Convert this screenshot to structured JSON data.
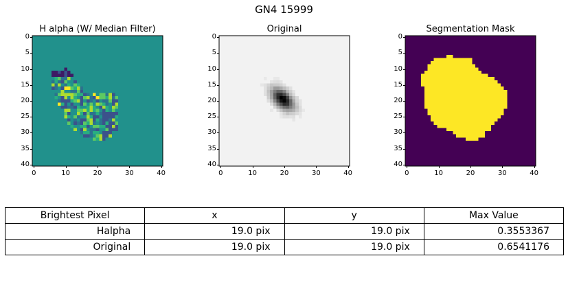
{
  "suptitle": "GN4 15999",
  "chart_data": [
    {
      "type": "heatmap",
      "title": "H alpha (W/ Median Filter)",
      "colormap": "viridis",
      "xlim": [
        0,
        40
      ],
      "ylim": [
        40,
        0
      ],
      "xticks": [
        "0",
        "10",
        "20",
        "30",
        "40"
      ],
      "yticks": [
        "0",
        "5",
        "10",
        "15",
        "20",
        "25",
        "30",
        "35",
        "40"
      ],
      "background_value": 0.0,
      "value_range": [
        -0.25,
        0.36
      ],
      "notes": "Masked emission region with low (purple) pixels at top-left and bright yellow-green pixels; rest constant"
    },
    {
      "type": "heatmap",
      "title": "Original",
      "colormap": "gray_r",
      "xlim": [
        0,
        40
      ],
      "ylim": [
        40,
        0
      ],
      "xticks": [
        "0",
        "10",
        "20",
        "30",
        "40"
      ],
      "yticks": [
        "0",
        "5",
        "10",
        "15",
        "20",
        "25",
        "30",
        "35",
        "40"
      ],
      "peak": [
        19,
        19
      ],
      "peak_value": 0.6541176
    },
    {
      "type": "heatmap",
      "title": "Segmentation Mask",
      "colormap": "viridis",
      "xlim": [
        0,
        40
      ],
      "ylim": [
        40,
        0
      ],
      "xticks": [
        "0",
        "10",
        "20",
        "30",
        "40"
      ],
      "yticks": [
        "0",
        "5",
        "10",
        "15",
        "20",
        "25",
        "30",
        "35",
        "40"
      ],
      "mask_rows": [
        [
          6,
          13,
          14
        ],
        [
          7,
          9,
          20
        ],
        [
          8,
          8,
          20
        ],
        [
          9,
          7,
          21
        ],
        [
          10,
          7,
          22
        ],
        [
          11,
          6,
          23
        ],
        [
          12,
          5,
          25
        ],
        [
          13,
          5,
          27
        ],
        [
          14,
          5,
          28
        ],
        [
          15,
          5,
          29
        ],
        [
          16,
          6,
          30
        ],
        [
          17,
          6,
          31
        ],
        [
          18,
          6,
          31
        ],
        [
          19,
          6,
          31
        ],
        [
          20,
          6,
          31
        ],
        [
          21,
          6,
          31
        ],
        [
          22,
          6,
          31
        ],
        [
          23,
          7,
          30
        ],
        [
          24,
          7,
          30
        ],
        [
          25,
          8,
          29
        ],
        [
          26,
          8,
          28
        ],
        [
          27,
          9,
          27
        ],
        [
          28,
          10,
          26
        ],
        [
          29,
          13,
          26
        ],
        [
          30,
          15,
          24
        ],
        [
          31,
          16,
          24
        ],
        [
          32,
          19,
          22
        ]
      ]
    }
  ],
  "table": {
    "header": [
      "Brightest Pixel",
      "x",
      "y",
      "Max Value"
    ],
    "rows": [
      [
        "Halpha",
        "19.0 pix",
        "19.0 pix",
        "0.3553367"
      ],
      [
        "Original",
        "19.0 pix",
        "19.0 pix",
        "0.6541176"
      ]
    ]
  }
}
